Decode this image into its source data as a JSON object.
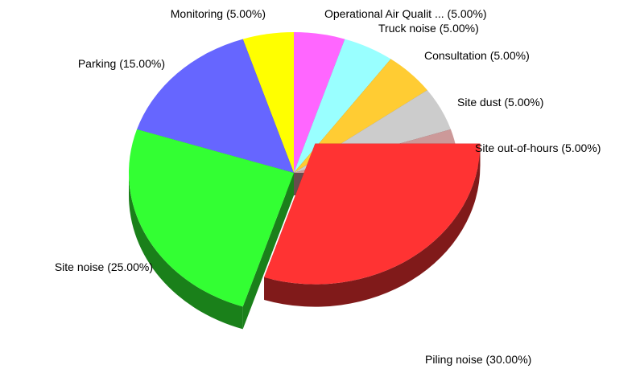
{
  "chart_data": {
    "type": "pie3d",
    "categories": [
      "Operational Air Qualit ...",
      "Truck noise",
      "Consultation",
      "Site dust",
      "Site out-of-hours",
      "Piling noise",
      "Site noise",
      "Parking",
      "Monitoring"
    ],
    "values": [
      5,
      5,
      5,
      5,
      5,
      30,
      25,
      15,
      5
    ],
    "value_labels": [
      "(5.00%)",
      "(5.00%)",
      "(5.00%)",
      "(5.00%)",
      "(5.00%)",
      "(30.00%)",
      "(25.00%)",
      "(15.00%)",
      "(5.00%)"
    ],
    "colors": [
      "#ff66ff",
      "#99ffff",
      "#ffcc33",
      "#cccccc",
      "#cc9999",
      "#ff3333",
      "#33ff33",
      "#6666ff",
      "#ffff00"
    ],
    "explode": [
      false,
      false,
      false,
      false,
      false,
      true,
      false,
      false,
      false
    ]
  }
}
